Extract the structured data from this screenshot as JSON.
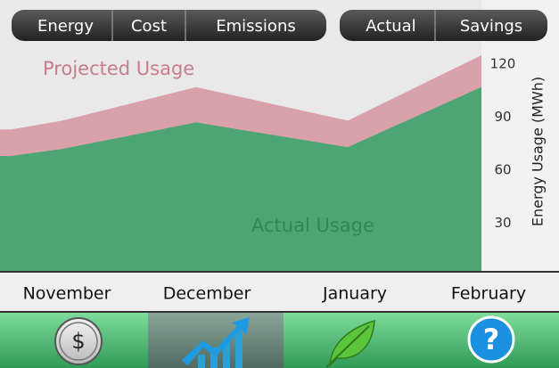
{
  "tabs_left": [
    "Energy",
    "Cost",
    "Emissions"
  ],
  "tabs_right": [
    "Actual",
    "Savings"
  ],
  "chart_data": {
    "type": "area",
    "categories": [
      null,
      "November",
      "December",
      "January",
      "February"
    ],
    "series": [
      {
        "name": "Projected Usage",
        "color": "#d9a2ab",
        "label_color": "#c97d8c",
        "values": [
          83,
          88,
          107,
          88,
          125
        ]
      },
      {
        "name": "Actual Usage",
        "color": "#4ea574",
        "label_color": "#2c8a55",
        "values": [
          68,
          72,
          87,
          73,
          107
        ]
      }
    ],
    "y_axis_label": "Energy Usage (MWh)",
    "ylim": [
      0,
      125
    ],
    "yticks": [
      30,
      60,
      90,
      120
    ],
    "grid": false
  },
  "nav": {
    "cost_icon": "$",
    "help_icon": "?"
  }
}
